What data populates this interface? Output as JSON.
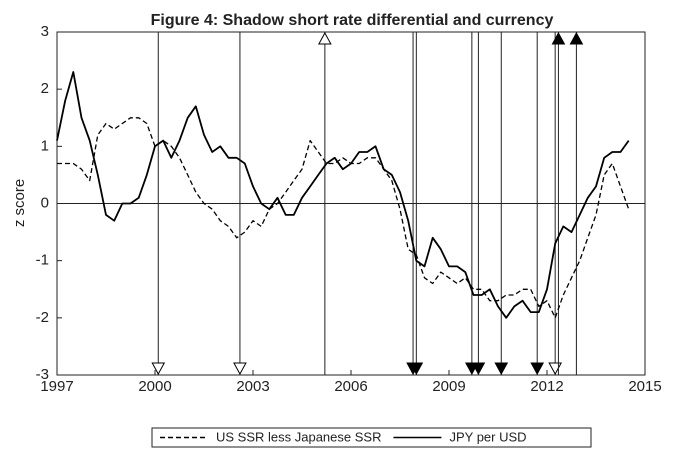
{
  "chart_data": {
    "type": "line",
    "title": "Figure 4: Shadow short rate differential and currency",
    "y_label": "z score",
    "x": [
      1997,
      1997.25,
      1997.5,
      1997.75,
      1998,
      1998.25,
      1998.5,
      1998.75,
      1999,
      1999.25,
      1999.5,
      1999.75,
      2000,
      2000.25,
      2000.5,
      2000.75,
      2001,
      2001.25,
      2001.5,
      2001.75,
      2002,
      2002.25,
      2002.5,
      2002.75,
      2003,
      2003.25,
      2003.5,
      2003.75,
      2004,
      2004.25,
      2004.5,
      2004.75,
      2005,
      2005.25,
      2005.5,
      2005.75,
      2006,
      2006.25,
      2006.5,
      2006.75,
      2007,
      2007.25,
      2007.5,
      2007.75,
      2008,
      2008.25,
      2008.5,
      2008.75,
      2009,
      2009.25,
      2009.5,
      2009.75,
      2010,
      2010.25,
      2010.5,
      2010.75,
      2011,
      2011.25,
      2011.5,
      2011.75,
      2012,
      2012.25,
      2012.5,
      2012.75,
      2013,
      2013.25,
      2013.5,
      2013.75,
      2014,
      2014.25,
      2014.5
    ],
    "series": [
      {
        "name": "US SSR less Japanese SSR",
        "color": "#000000",
        "dash": true,
        "values": [
          0.7,
          0.7,
          0.7,
          0.6,
          0.4,
          1.2,
          1.4,
          1.3,
          1.4,
          1.5,
          1.5,
          1.4,
          1.0,
          1.1,
          1.0,
          0.8,
          0.5,
          0.2,
          0.0,
          -0.1,
          -0.3,
          -0.4,
          -0.6,
          -0.5,
          -0.3,
          -0.4,
          -0.1,
          0.0,
          0.2,
          0.4,
          0.6,
          1.1,
          0.9,
          0.7,
          0.7,
          0.8,
          0.7,
          0.7,
          0.8,
          0.8,
          0.6,
          0.4,
          -0.1,
          -0.8,
          -0.9,
          -1.3,
          -1.4,
          -1.2,
          -1.3,
          -1.4,
          -1.3,
          -1.5,
          -1.5,
          -1.7,
          -1.7,
          -1.6,
          -1.6,
          -1.5,
          -1.5,
          -1.8,
          -1.7,
          -2.0,
          -1.6,
          -1.3,
          -1.0,
          -0.6,
          -0.2,
          0.5,
          0.7,
          0.3,
          -0.1
        ]
      },
      {
        "name": "JPY per USD",
        "color": "#000000",
        "dash": false,
        "values": [
          1.1,
          1.8,
          2.3,
          1.5,
          1.1,
          0.5,
          -0.2,
          -0.3,
          0.0,
          0.0,
          0.1,
          0.5,
          1.0,
          1.1,
          0.8,
          1.1,
          1.5,
          1.7,
          1.2,
          0.9,
          1.0,
          0.8,
          0.8,
          0.7,
          0.3,
          0.0,
          -0.1,
          0.1,
          -0.2,
          -0.2,
          0.1,
          0.3,
          0.5,
          0.7,
          0.8,
          0.6,
          0.7,
          0.9,
          0.9,
          1.0,
          0.6,
          0.5,
          0.2,
          -0.3,
          -1.0,
          -1.1,
          -0.6,
          -0.8,
          -1.1,
          -1.1,
          -1.2,
          -1.6,
          -1.6,
          -1.5,
          -1.8,
          -2.0,
          -1.8,
          -1.7,
          -1.9,
          -1.9,
          -1.5,
          -0.7,
          -0.4,
          -0.5,
          -0.2,
          0.1,
          0.3,
          0.8,
          0.9,
          0.9,
          1.1
        ]
      }
    ],
    "events": [
      {
        "x": 2000.1,
        "arrow": "down",
        "filled": false
      },
      {
        "x": 2002.6,
        "arrow": "down",
        "filled": false
      },
      {
        "x": 2005.2,
        "arrow": "up",
        "filled": false
      },
      {
        "x": 2007.9,
        "arrow": "down",
        "filled": true
      },
      {
        "x": 2008.0,
        "arrow": "down",
        "filled": true
      },
      {
        "x": 2009.7,
        "arrow": "down",
        "filled": true
      },
      {
        "x": 2009.9,
        "arrow": "down",
        "filled": true
      },
      {
        "x": 2010.6,
        "arrow": "down",
        "filled": true
      },
      {
        "x": 2011.7,
        "arrow": "down",
        "filled": true
      },
      {
        "x": 2012.25,
        "arrow": "down",
        "filled": false
      },
      {
        "x": 2012.35,
        "arrow": "up",
        "filled": true
      },
      {
        "x": 2012.9,
        "arrow": "up",
        "filled": true
      }
    ],
    "xlim": [
      1997,
      2015
    ],
    "xticks": [
      1997,
      2000,
      2003,
      2006,
      2009,
      2012,
      2015
    ],
    "ylim": [
      -3,
      3
    ],
    "yticks": [
      -3,
      -2,
      -1,
      0,
      1,
      2,
      3
    ],
    "zero_line": true,
    "legend": "bottom"
  }
}
